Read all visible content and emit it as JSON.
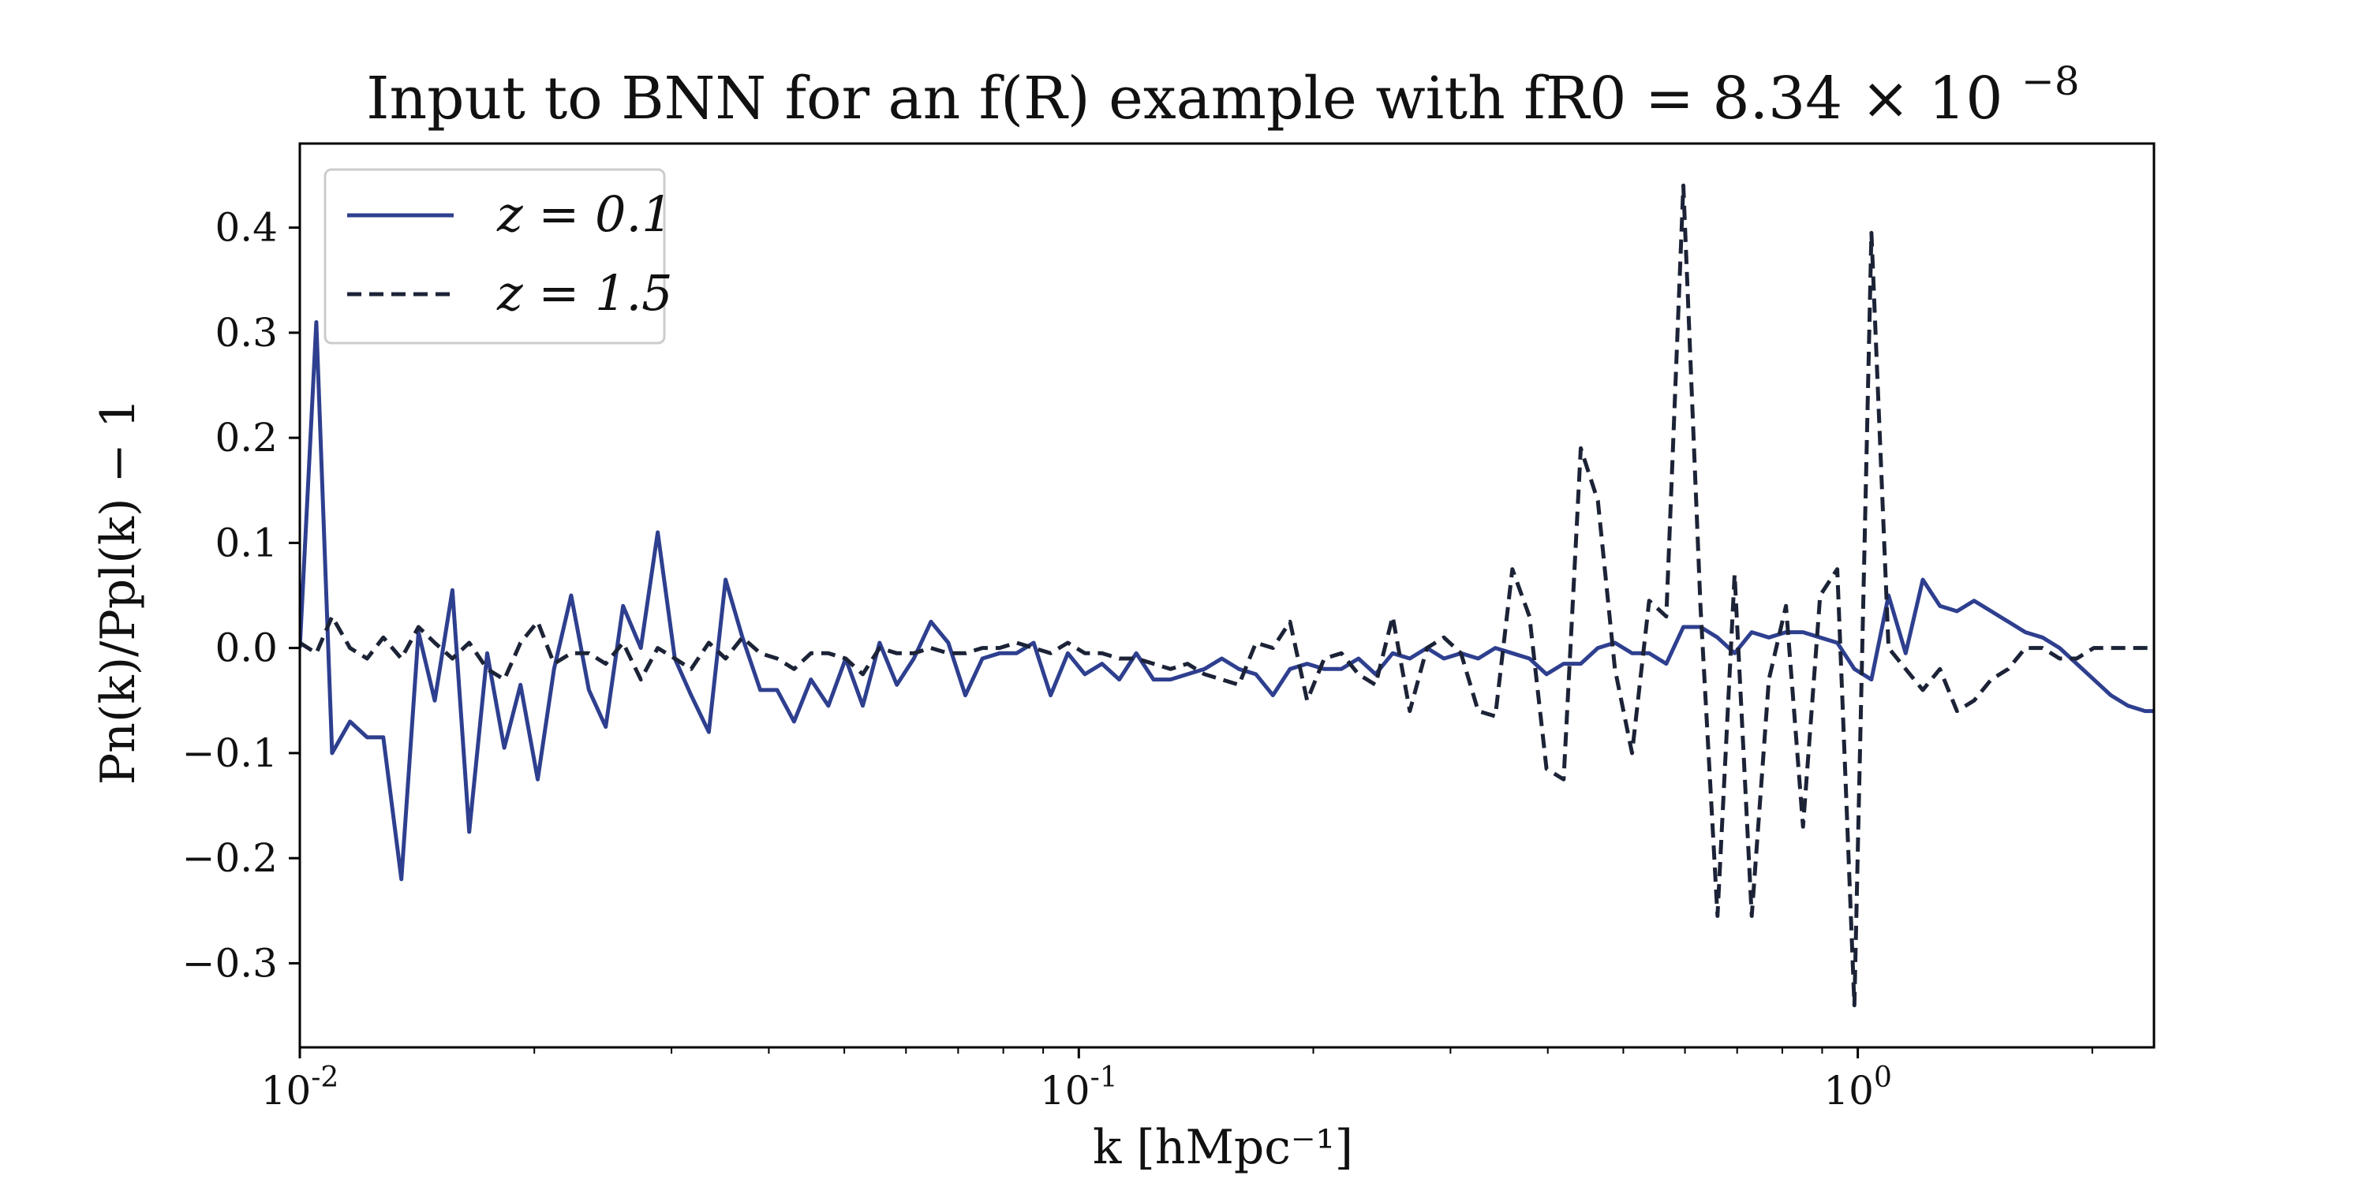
{
  "chart_data": {
    "type": "line",
    "title": "Input to BNN for an f(R) example with f_R0 = 8.34 × 10^-8",
    "title_display": "Input to BNN for an f(R) example with fR0 = 8.34 × 10",
    "title_exponent": "−8",
    "xlabel": "k [hMpc⁻¹]",
    "ylabel": "Pn(k)/Ppl(k) − 1",
    "x_scale": "log",
    "xlim": [
      0.01,
      2.4
    ],
    "ylim": [
      -0.38,
      0.48
    ],
    "x_ticks": [
      {
        "value": 0.01,
        "base": "10",
        "exp": "-2"
      },
      {
        "value": 0.1,
        "base": "10",
        "exp": "-1"
      },
      {
        "value": 1,
        "base": "10",
        "exp": "0"
      }
    ],
    "y_ticks": [
      {
        "value": 0.4,
        "label": "0.4"
      },
      {
        "value": 0.3,
        "label": "0.3"
      },
      {
        "value": 0.2,
        "label": "0.2"
      },
      {
        "value": 0.1,
        "label": "0.1"
      },
      {
        "value": 0.0,
        "label": "0.0"
      },
      {
        "value": -0.1,
        "label": "−0.1"
      },
      {
        "value": -0.2,
        "label": "−0.2"
      },
      {
        "value": -0.3,
        "label": "−0.3"
      }
    ],
    "grid": false,
    "legend_position": "top-left",
    "series": [
      {
        "name": "z = 0.1",
        "color": "#2e3f8f",
        "dash": "solid",
        "x": [
          0.01,
          0.0105,
          0.011,
          0.0116,
          0.0122,
          0.0128,
          0.0135,
          0.0142,
          0.0149,
          0.0157,
          0.0165,
          0.0174,
          0.0183,
          0.0192,
          0.0202,
          0.0212,
          0.0223,
          0.0235,
          0.0247,
          0.026,
          0.0274,
          0.0288,
          0.0303,
          0.0318,
          0.0335,
          0.0352,
          0.037,
          0.039,
          0.041,
          0.0431,
          0.0453,
          0.0477,
          0.0502,
          0.0528,
          0.0555,
          0.0584,
          0.0614,
          0.0646,
          0.068,
          0.0715,
          0.0752,
          0.0791,
          0.0832,
          0.0875,
          0.092,
          0.0968,
          0.1018,
          0.1071,
          0.1127,
          0.1185,
          0.1247,
          0.1311,
          0.1379,
          0.145,
          0.1526,
          0.1605,
          0.1688,
          0.1775,
          0.1867,
          0.1964,
          0.2066,
          0.2173,
          0.2286,
          0.2404,
          0.2529,
          0.266,
          0.2798,
          0.2943,
          0.3095,
          0.3256,
          0.3425,
          0.3602,
          0.3789,
          0.3985,
          0.4192,
          0.4409,
          0.4638,
          0.4878,
          0.5131,
          0.5397,
          0.5677,
          0.5971,
          0.6281,
          0.6606,
          0.6949,
          0.7309,
          0.7688,
          0.8087,
          0.8506,
          0.8947,
          0.9411,
          0.9899,
          1.0412,
          1.0952,
          1.152,
          1.2117,
          1.2746,
          1.3406,
          1.4101,
          1.4833,
          1.5602,
          1.6411,
          1.7262,
          1.8157,
          1.9099,
          2.0089,
          2.1131,
          2.2227,
          2.338,
          2.4
        ],
        "y": [
          0.0,
          0.31,
          -0.1,
          -0.07,
          -0.085,
          -0.085,
          -0.22,
          0.015,
          -0.05,
          0.055,
          -0.175,
          -0.005,
          -0.095,
          -0.035,
          -0.125,
          -0.02,
          0.05,
          -0.04,
          -0.075,
          0.04,
          0.0,
          0.11,
          -0.01,
          -0.045,
          -0.08,
          0.065,
          0.01,
          -0.04,
          -0.04,
          -0.07,
          -0.03,
          -0.055,
          -0.01,
          -0.055,
          0.005,
          -0.035,
          -0.01,
          0.025,
          0.005,
          -0.045,
          -0.01,
          -0.005,
          -0.005,
          0.005,
          -0.045,
          -0.005,
          -0.025,
          -0.015,
          -0.03,
          -0.005,
          -0.03,
          -0.03,
          -0.025,
          -0.02,
          -0.01,
          -0.02,
          -0.025,
          -0.045,
          -0.02,
          -0.015,
          -0.02,
          -0.02,
          -0.01,
          -0.025,
          -0.005,
          -0.01,
          0.0,
          -0.01,
          -0.005,
          -0.01,
          0.0,
          -0.005,
          -0.01,
          -0.025,
          -0.015,
          -0.015,
          0.0,
          0.005,
          -0.005,
          -0.005,
          -0.015,
          0.02,
          0.02,
          0.01,
          -0.005,
          0.015,
          0.01,
          0.015,
          0.015,
          0.01,
          0.005,
          -0.02,
          -0.03,
          0.05,
          -0.005,
          0.065,
          0.04,
          0.035,
          0.045,
          0.035,
          0.025,
          0.015,
          0.01,
          0.0,
          -0.015,
          -0.03,
          -0.045,
          -0.055,
          -0.06,
          -0.06
        ],
        "note": ""
      },
      {
        "name": "z = 1.5",
        "color": "#1c2337",
        "dash": "dashed",
        "x": [
          0.01,
          0.0105,
          0.011,
          0.0116,
          0.0122,
          0.0128,
          0.0135,
          0.0142,
          0.0149,
          0.0157,
          0.0165,
          0.0174,
          0.0183,
          0.0192,
          0.0202,
          0.0212,
          0.0223,
          0.0235,
          0.0247,
          0.026,
          0.0274,
          0.0288,
          0.0303,
          0.0318,
          0.0335,
          0.0352,
          0.037,
          0.039,
          0.041,
          0.0431,
          0.0453,
          0.0477,
          0.0502,
          0.0528,
          0.0555,
          0.0584,
          0.0614,
          0.0646,
          0.068,
          0.0715,
          0.0752,
          0.0791,
          0.0832,
          0.0875,
          0.092,
          0.0968,
          0.1018,
          0.1071,
          0.1127,
          0.1185,
          0.1247,
          0.1311,
          0.1379,
          0.145,
          0.1526,
          0.1605,
          0.1688,
          0.1775,
          0.1867,
          0.1964,
          0.2066,
          0.2173,
          0.2286,
          0.2404,
          0.2529,
          0.266,
          0.2798,
          0.2943,
          0.3095,
          0.3256,
          0.3425,
          0.3602,
          0.3789,
          0.3985,
          0.4192,
          0.4409,
          0.4638,
          0.4878,
          0.5131,
          0.5397,
          0.5677,
          0.5971,
          0.6281,
          0.6606,
          0.6949,
          0.7309,
          0.7688,
          0.8087,
          0.8506,
          0.8947,
          0.9411,
          0.9899,
          1.0412,
          1.0952,
          1.152,
          1.2117,
          1.2746,
          1.3406,
          1.4101,
          1.4833,
          1.5602,
          1.6411,
          1.7262,
          1.8157,
          1.9099,
          2.0089,
          2.1131,
          2.2227,
          2.338,
          2.4
        ],
        "y": [
          0.005,
          -0.005,
          0.03,
          0.0,
          -0.01,
          0.01,
          -0.01,
          0.02,
          0.005,
          -0.01,
          0.005,
          -0.02,
          -0.03,
          0.005,
          0.025,
          -0.015,
          -0.005,
          -0.005,
          -0.015,
          0.005,
          -0.03,
          0.0,
          -0.01,
          -0.02,
          0.005,
          -0.01,
          0.01,
          -0.005,
          -0.01,
          -0.02,
          -0.005,
          -0.005,
          -0.01,
          -0.025,
          0.0,
          -0.005,
          -0.005,
          0.0,
          -0.005,
          -0.005,
          0.0,
          0.0,
          0.005,
          0.0,
          -0.005,
          0.005,
          -0.005,
          -0.005,
          -0.01,
          -0.01,
          -0.015,
          -0.02,
          -0.015,
          -0.025,
          -0.03,
          -0.035,
          0.005,
          0.0,
          0.025,
          -0.05,
          -0.01,
          -0.005,
          -0.025,
          -0.035,
          0.03,
          -0.06,
          0.0,
          0.01,
          -0.005,
          -0.06,
          -0.065,
          0.075,
          0.03,
          -0.115,
          -0.125,
          0.19,
          0.14,
          -0.02,
          -0.1,
          0.045,
          0.03,
          0.44,
          0.04,
          -0.255,
          0.07,
          -0.255,
          -0.03,
          0.04,
          -0.17,
          0.05,
          0.075,
          -0.34,
          0.395,
          0.0,
          -0.02,
          -0.04,
          -0.02,
          -0.06,
          -0.05,
          -0.03,
          -0.02,
          0.0,
          0.0,
          -0.01,
          -0.01,
          0.0,
          0.0,
          0.0,
          0.0,
          0.0
        ],
        "note": ""
      }
    ]
  }
}
